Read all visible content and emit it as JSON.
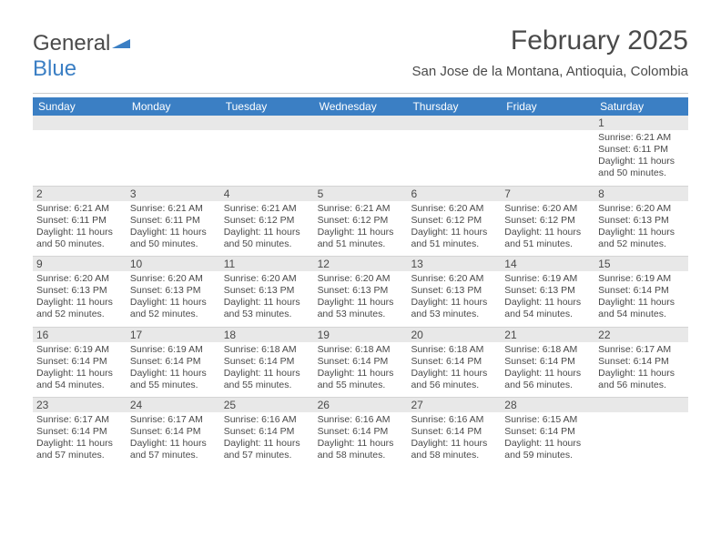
{
  "logo": {
    "text1": "General",
    "text2": "Blue"
  },
  "title": "February 2025",
  "subtitle": "San Jose de la Montana, Antioquia, Colombia",
  "colors": {
    "header_bg": "#3b7fc4",
    "header_fg": "#ffffff",
    "daynum_bg": "#e8e8e8",
    "text": "#4a4a4a",
    "divider": "#cccccc",
    "week_sep": "#d4d4d4",
    "page_bg": "#ffffff"
  },
  "typography": {
    "title_size_pt": 22,
    "subtitle_size_pt": 11,
    "dayheader_size_pt": 9,
    "daynum_size_pt": 9,
    "info_size_pt": 8
  },
  "day_headers": [
    "Sunday",
    "Monday",
    "Tuesday",
    "Wednesday",
    "Thursday",
    "Friday",
    "Saturday"
  ],
  "weeks": [
    [
      {
        "n": "",
        "lines": []
      },
      {
        "n": "",
        "lines": []
      },
      {
        "n": "",
        "lines": []
      },
      {
        "n": "",
        "lines": []
      },
      {
        "n": "",
        "lines": []
      },
      {
        "n": "",
        "lines": []
      },
      {
        "n": "1",
        "lines": [
          "Sunrise: 6:21 AM",
          "Sunset: 6:11 PM",
          "Daylight: 11 hours",
          "and 50 minutes."
        ]
      }
    ],
    [
      {
        "n": "2",
        "lines": [
          "Sunrise: 6:21 AM",
          "Sunset: 6:11 PM",
          "Daylight: 11 hours",
          "and 50 minutes."
        ]
      },
      {
        "n": "3",
        "lines": [
          "Sunrise: 6:21 AM",
          "Sunset: 6:11 PM",
          "Daylight: 11 hours",
          "and 50 minutes."
        ]
      },
      {
        "n": "4",
        "lines": [
          "Sunrise: 6:21 AM",
          "Sunset: 6:12 PM",
          "Daylight: 11 hours",
          "and 50 minutes."
        ]
      },
      {
        "n": "5",
        "lines": [
          "Sunrise: 6:21 AM",
          "Sunset: 6:12 PM",
          "Daylight: 11 hours",
          "and 51 minutes."
        ]
      },
      {
        "n": "6",
        "lines": [
          "Sunrise: 6:20 AM",
          "Sunset: 6:12 PM",
          "Daylight: 11 hours",
          "and 51 minutes."
        ]
      },
      {
        "n": "7",
        "lines": [
          "Sunrise: 6:20 AM",
          "Sunset: 6:12 PM",
          "Daylight: 11 hours",
          "and 51 minutes."
        ]
      },
      {
        "n": "8",
        "lines": [
          "Sunrise: 6:20 AM",
          "Sunset: 6:13 PM",
          "Daylight: 11 hours",
          "and 52 minutes."
        ]
      }
    ],
    [
      {
        "n": "9",
        "lines": [
          "Sunrise: 6:20 AM",
          "Sunset: 6:13 PM",
          "Daylight: 11 hours",
          "and 52 minutes."
        ]
      },
      {
        "n": "10",
        "lines": [
          "Sunrise: 6:20 AM",
          "Sunset: 6:13 PM",
          "Daylight: 11 hours",
          "and 52 minutes."
        ]
      },
      {
        "n": "11",
        "lines": [
          "Sunrise: 6:20 AM",
          "Sunset: 6:13 PM",
          "Daylight: 11 hours",
          "and 53 minutes."
        ]
      },
      {
        "n": "12",
        "lines": [
          "Sunrise: 6:20 AM",
          "Sunset: 6:13 PM",
          "Daylight: 11 hours",
          "and 53 minutes."
        ]
      },
      {
        "n": "13",
        "lines": [
          "Sunrise: 6:20 AM",
          "Sunset: 6:13 PM",
          "Daylight: 11 hours",
          "and 53 minutes."
        ]
      },
      {
        "n": "14",
        "lines": [
          "Sunrise: 6:19 AM",
          "Sunset: 6:13 PM",
          "Daylight: 11 hours",
          "and 54 minutes."
        ]
      },
      {
        "n": "15",
        "lines": [
          "Sunrise: 6:19 AM",
          "Sunset: 6:14 PM",
          "Daylight: 11 hours",
          "and 54 minutes."
        ]
      }
    ],
    [
      {
        "n": "16",
        "lines": [
          "Sunrise: 6:19 AM",
          "Sunset: 6:14 PM",
          "Daylight: 11 hours",
          "and 54 minutes."
        ]
      },
      {
        "n": "17",
        "lines": [
          "Sunrise: 6:19 AM",
          "Sunset: 6:14 PM",
          "Daylight: 11 hours",
          "and 55 minutes."
        ]
      },
      {
        "n": "18",
        "lines": [
          "Sunrise: 6:18 AM",
          "Sunset: 6:14 PM",
          "Daylight: 11 hours",
          "and 55 minutes."
        ]
      },
      {
        "n": "19",
        "lines": [
          "Sunrise: 6:18 AM",
          "Sunset: 6:14 PM",
          "Daylight: 11 hours",
          "and 55 minutes."
        ]
      },
      {
        "n": "20",
        "lines": [
          "Sunrise: 6:18 AM",
          "Sunset: 6:14 PM",
          "Daylight: 11 hours",
          "and 56 minutes."
        ]
      },
      {
        "n": "21",
        "lines": [
          "Sunrise: 6:18 AM",
          "Sunset: 6:14 PM",
          "Daylight: 11 hours",
          "and 56 minutes."
        ]
      },
      {
        "n": "22",
        "lines": [
          "Sunrise: 6:17 AM",
          "Sunset: 6:14 PM",
          "Daylight: 11 hours",
          "and 56 minutes."
        ]
      }
    ],
    [
      {
        "n": "23",
        "lines": [
          "Sunrise: 6:17 AM",
          "Sunset: 6:14 PM",
          "Daylight: 11 hours",
          "and 57 minutes."
        ]
      },
      {
        "n": "24",
        "lines": [
          "Sunrise: 6:17 AM",
          "Sunset: 6:14 PM",
          "Daylight: 11 hours",
          "and 57 minutes."
        ]
      },
      {
        "n": "25",
        "lines": [
          "Sunrise: 6:16 AM",
          "Sunset: 6:14 PM",
          "Daylight: 11 hours",
          "and 57 minutes."
        ]
      },
      {
        "n": "26",
        "lines": [
          "Sunrise: 6:16 AM",
          "Sunset: 6:14 PM",
          "Daylight: 11 hours",
          "and 58 minutes."
        ]
      },
      {
        "n": "27",
        "lines": [
          "Sunrise: 6:16 AM",
          "Sunset: 6:14 PM",
          "Daylight: 11 hours",
          "and 58 minutes."
        ]
      },
      {
        "n": "28",
        "lines": [
          "Sunrise: 6:15 AM",
          "Sunset: 6:14 PM",
          "Daylight: 11 hours",
          "and 59 minutes."
        ]
      },
      {
        "n": "",
        "lines": []
      }
    ]
  ]
}
